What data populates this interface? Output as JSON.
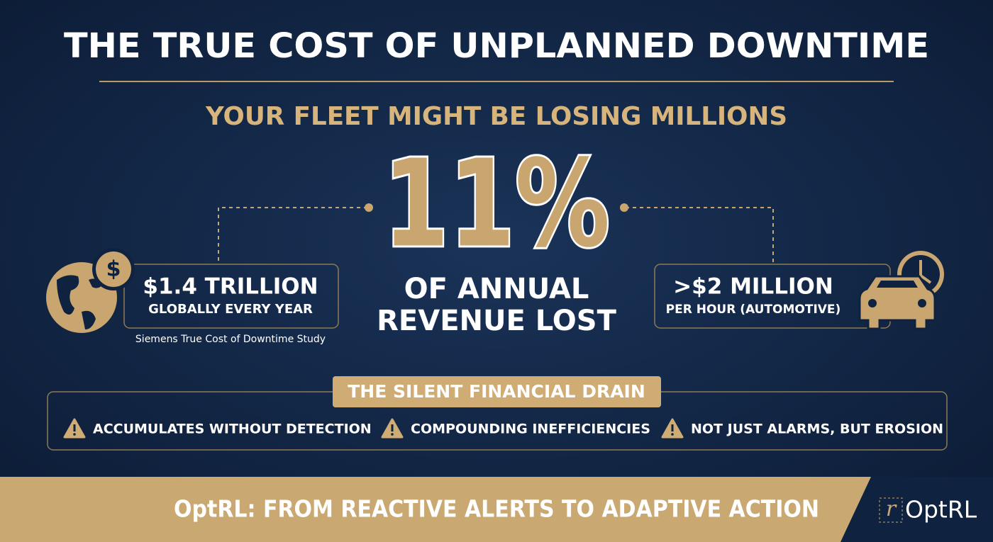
{
  "header": {
    "title": "THE TRUE COST OF UNPLANNED DOWNTIME",
    "subtitle": "YOUR FLEET MIGHT BE LOSING MILLIONS"
  },
  "headline": {
    "stat": "11%",
    "lines": [
      "OF ANNUAL",
      "REVENUE LOST"
    ]
  },
  "left": {
    "icon_symbol": "$",
    "value": "$1.4 TRILLION",
    "caption": "GLOBALLY EVERY YEAR",
    "source": "Siemens True Cost of Downtime Study"
  },
  "right": {
    "value": ">$2 MILLION",
    "caption": "PER HOUR (AUTOMOTIVE)"
  },
  "drain": {
    "title": "THE SILENT FINANCIAL DRAIN",
    "items": [
      "ACCUMULATES WITHOUT DETECTION",
      "COMPOUNDING INEFFICIENCIES",
      "NOT JUST ALARMS, BUT EROSION"
    ]
  },
  "footer": {
    "tagline": "OptRL: FROM REACTIVE ALERTS TO ADAPTIVE ACTION",
    "logo_mark": "r",
    "logo_text": "OptRL"
  }
}
